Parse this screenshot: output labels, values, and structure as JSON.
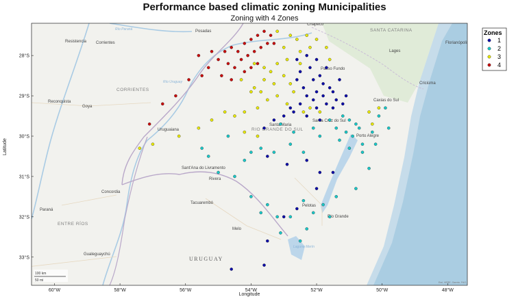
{
  "chart_data": {
    "type": "scatter",
    "title": "Performance based climatic zoning Municipalities",
    "subtitle": "Zoning with 4 Zones",
    "xlabel": "Longitude",
    "ylabel": "Latitude",
    "xlim": [
      -60.7,
      -47.4
    ],
    "ylim": [
      -33.7,
      -27.2
    ],
    "x_ticks": [
      "60°W",
      "58°W",
      "56°W",
      "54°W",
      "52°W",
      "50°W",
      "48°W"
    ],
    "y_ticks": [
      "28°S",
      "29°S",
      "30°S",
      "31°S",
      "32°S",
      "33°S"
    ],
    "legend": {
      "title": "Zones",
      "position": "top-right",
      "entries": [
        "1",
        "2",
        "3",
        "4"
      ]
    },
    "colors": {
      "1": "#0a0aa8",
      "2": "#19c8c8",
      "3": "#e8e800",
      "4": "#c80a0a"
    },
    "series": [
      {
        "name": "1",
        "points": [
          [
            -52.6,
            -28.1
          ],
          [
            -52.3,
            -28.0
          ],
          [
            -52.0,
            -28.1
          ],
          [
            -51.7,
            -28.3
          ],
          [
            -52.2,
            -28.3
          ],
          [
            -52.5,
            -28.4
          ],
          [
            -51.9,
            -28.5
          ],
          [
            -52.1,
            -28.6
          ],
          [
            -51.8,
            -28.7
          ],
          [
            -52.4,
            -28.8
          ],
          [
            -51.6,
            -28.8
          ],
          [
            -52.0,
            -28.9
          ],
          [
            -51.5,
            -28.9
          ],
          [
            -52.3,
            -29.0
          ],
          [
            -51.8,
            -29.0
          ],
          [
            -52.1,
            -29.1
          ],
          [
            -51.4,
            -29.1
          ],
          [
            -52.5,
            -29.2
          ],
          [
            -51.7,
            -29.2
          ],
          [
            -51.2,
            -29.2
          ],
          [
            -52.8,
            -29.3
          ],
          [
            -52.0,
            -29.3
          ],
          [
            -51.5,
            -29.3
          ],
          [
            -51.1,
            -29.0
          ],
          [
            -52.6,
            -28.6
          ],
          [
            -51.3,
            -28.6
          ],
          [
            -52.7,
            -29.4
          ],
          [
            -53.0,
            -29.5
          ],
          [
            -53.3,
            -29.6
          ],
          [
            -53.6,
            -29.8
          ],
          [
            -52.3,
            -29.5
          ],
          [
            -51.9,
            -29.6
          ],
          [
            -53.5,
            -30.5
          ],
          [
            -52.9,
            -30.7
          ],
          [
            -52.3,
            -30.6
          ],
          [
            -51.9,
            -30.9
          ],
          [
            -51.5,
            -30.9
          ],
          [
            -52.0,
            -31.3
          ],
          [
            -52.6,
            -31.8
          ],
          [
            -53.0,
            -32.0
          ],
          [
            -53.5,
            -32.6
          ],
          [
            -53.6,
            -33.2
          ],
          [
            -54.6,
            -33.3
          ]
        ]
      },
      {
        "name": "2",
        "points": [
          [
            -51.2,
            -29.5
          ],
          [
            -51.0,
            -29.6
          ],
          [
            -50.8,
            -29.7
          ],
          [
            -51.4,
            -29.8
          ],
          [
            -51.1,
            -29.9
          ],
          [
            -50.9,
            -30.0
          ],
          [
            -51.3,
            -30.1
          ],
          [
            -50.6,
            -30.2
          ],
          [
            -51.0,
            -30.3
          ],
          [
            -50.2,
            -30.2
          ],
          [
            -50.1,
            -29.5
          ],
          [
            -49.9,
            -29.3
          ],
          [
            -49.8,
            -29.8
          ],
          [
            -51.6,
            -29.6
          ],
          [
            -52.1,
            -29.8
          ],
          [
            -51.9,
            -30.0
          ],
          [
            -52.4,
            -30.4
          ],
          [
            -52.8,
            -30.2
          ],
          [
            -53.3,
            -30.4
          ],
          [
            -53.7,
            -30.3
          ],
          [
            -54.0,
            -30.4
          ],
          [
            -54.2,
            -30.6
          ],
          [
            -54.5,
            -31.0
          ],
          [
            -54.0,
            -31.5
          ],
          [
            -53.5,
            -31.7
          ],
          [
            -53.2,
            -32.0
          ],
          [
            -53.7,
            -31.9
          ],
          [
            -52.4,
            -31.6
          ],
          [
            -52.1,
            -31.9
          ],
          [
            -51.8,
            -31.7
          ],
          [
            -51.4,
            -31.5
          ],
          [
            -52.3,
            -32.3
          ],
          [
            -52.8,
            -32.0
          ],
          [
            -53.1,
            -32.4
          ],
          [
            -52.5,
            -32.6
          ],
          [
            -51.6,
            -32.0
          ],
          [
            -50.8,
            -31.3
          ],
          [
            -50.4,
            -30.8
          ],
          [
            -50.6,
            -30.4
          ],
          [
            -55.3,
            -30.5
          ],
          [
            -55.0,
            -30.9
          ],
          [
            -55.5,
            -30.3
          ],
          [
            -54.7,
            -30.0
          ],
          [
            -53.1,
            -29.7
          ],
          [
            -52.7,
            -29.9
          ],
          [
            -50.7,
            -29.8
          ],
          [
            -50.3,
            -29.9
          ]
        ]
      },
      {
        "name": "3",
        "points": [
          [
            -53.2,
            -27.4
          ],
          [
            -52.8,
            -27.5
          ],
          [
            -52.6,
            -27.6
          ],
          [
            -52.3,
            -27.5
          ],
          [
            -52.0,
            -27.6
          ],
          [
            -51.7,
            -27.8
          ],
          [
            -53.0,
            -27.8
          ],
          [
            -52.5,
            -27.9
          ],
          [
            -52.9,
            -28.1
          ],
          [
            -53.2,
            -28.2
          ],
          [
            -53.4,
            -28.4
          ],
          [
            -53.0,
            -28.5
          ],
          [
            -52.8,
            -28.7
          ],
          [
            -53.3,
            -28.7
          ],
          [
            -53.6,
            -28.6
          ],
          [
            -53.9,
            -28.8
          ],
          [
            -52.7,
            -28.9
          ],
          [
            -53.2,
            -29.0
          ],
          [
            -52.9,
            -29.2
          ],
          [
            -53.5,
            -29.1
          ],
          [
            -53.8,
            -29.3
          ],
          [
            -54.2,
            -29.4
          ],
          [
            -54.5,
            -29.5
          ],
          [
            -54.8,
            -29.4
          ],
          [
            -55.2,
            -29.6
          ],
          [
            -55.6,
            -29.8
          ],
          [
            -56.2,
            -30.0
          ],
          [
            -57.4,
            -30.3
          ],
          [
            -57.0,
            -30.2
          ],
          [
            -54.2,
            -29.9
          ],
          [
            -53.8,
            -30.0
          ],
          [
            -52.4,
            -29.4
          ],
          [
            -52.2,
            -29.3
          ],
          [
            -51.9,
            -29.4
          ],
          [
            -52.5,
            -28.2
          ],
          [
            -52.2,
            -27.8
          ],
          [
            -51.6,
            -28.1
          ],
          [
            -50.4,
            -29.4
          ],
          [
            -50.1,
            -29.3
          ],
          [
            -50.3,
            -29.7
          ],
          [
            -54.0,
            -28.9
          ],
          [
            -54.3,
            -28.6
          ],
          [
            -53.7,
            -28.9
          ],
          [
            -53.6,
            -28.3
          ],
          [
            -53.9,
            -28.2
          ]
        ]
      },
      {
        "name": "4",
        "points": [
          [
            -55.0,
            -28.1
          ],
          [
            -54.8,
            -27.9
          ],
          [
            -54.6,
            -27.8
          ],
          [
            -54.4,
            -27.9
          ],
          [
            -54.2,
            -27.7
          ],
          [
            -54.0,
            -27.6
          ],
          [
            -53.8,
            -27.5
          ],
          [
            -53.6,
            -27.4
          ],
          [
            -54.7,
            -28.2
          ],
          [
            -54.5,
            -28.3
          ],
          [
            -54.3,
            -28.1
          ],
          [
            -54.1,
            -28.0
          ],
          [
            -53.9,
            -27.9
          ],
          [
            -53.7,
            -27.8
          ],
          [
            -53.5,
            -27.7
          ],
          [
            -54.9,
            -28.5
          ],
          [
            -54.6,
            -28.6
          ],
          [
            -54.2,
            -28.4
          ],
          [
            -54.0,
            -28.3
          ],
          [
            -53.8,
            -28.2
          ],
          [
            -53.4,
            -27.5
          ],
          [
            -53.3,
            -27.7
          ],
          [
            -55.3,
            -28.3
          ],
          [
            -55.5,
            -28.5
          ],
          [
            -55.9,
            -28.6
          ],
          [
            -56.3,
            -29.0
          ],
          [
            -56.7,
            -29.2
          ],
          [
            -57.1,
            -29.7
          ],
          [
            -55.2,
            -27.9
          ],
          [
            -55.6,
            -28.0
          ]
        ]
      }
    ]
  },
  "map": {
    "places": [
      "Posadas",
      "Resistencia",
      "Corrientes",
      "Chapecó",
      "Lages",
      "Florianópolis",
      "Criciúma",
      "Passo Fundo",
      "Caxias do Sul",
      "Santa Cruz do Sul",
      "Santa Maria",
      "Porto Alegre",
      "Uruguaiana",
      "Sant'Ana do Livramento",
      "Rivera",
      "Tacuarembó",
      "Pelotas",
      "Rio Grande",
      "Melo",
      "Reconquista",
      "Goya",
      "Concordia",
      "Paraná",
      "Gualeguaychú"
    ],
    "regions": [
      "SANTA CATARINA",
      "CORRIENTES",
      "RIO GRANDE DO SUL",
      "ENTRE RÍOS"
    ],
    "country": "URUGUAY",
    "water": [
      "Laguna Merín",
      "Río Uruguay",
      "Río Paraná"
    ],
    "scale": [
      "100 km",
      "50 mi"
    ],
    "credit": "Esri, HERE, Garmin, FAO, NOAA, USGS"
  }
}
